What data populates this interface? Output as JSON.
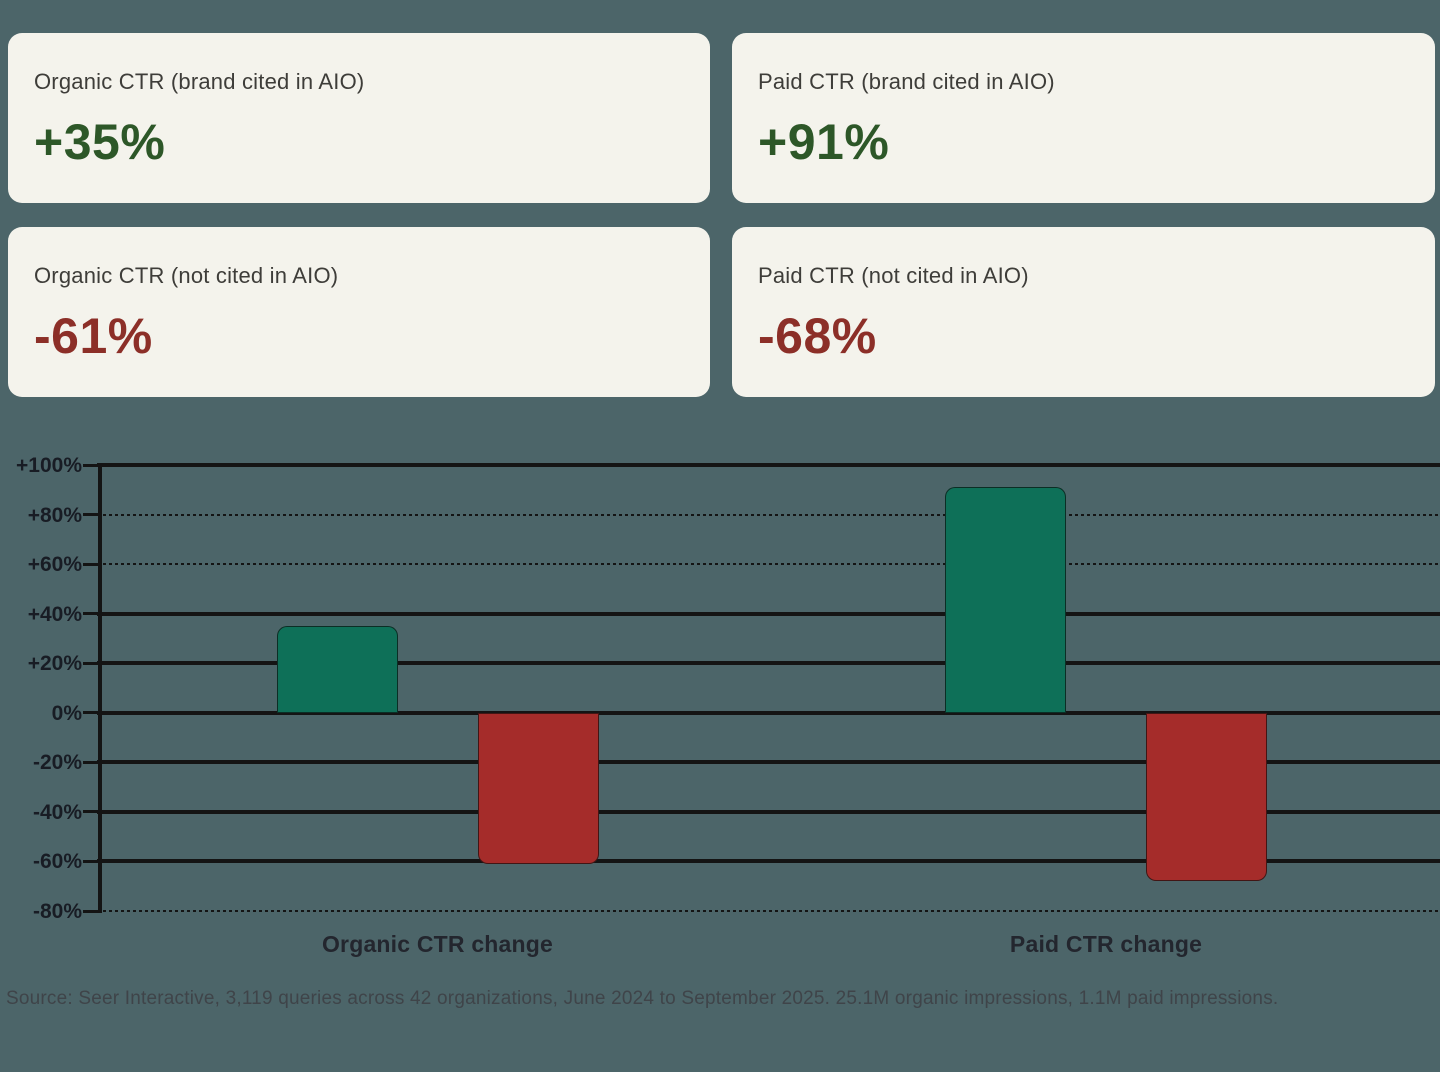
{
  "cards": [
    {
      "label": "Organic CTR (brand cited in AIO)",
      "value": "+35%",
      "sentiment": "positive"
    },
    {
      "label": "Paid CTR (brand cited in AIO)",
      "value": "+91%",
      "sentiment": "positive"
    },
    {
      "label": "Organic CTR (not cited in AIO)",
      "value": "-61%",
      "sentiment": "negative"
    },
    {
      "label": "Paid CTR (not cited in AIO)",
      "value": "-68%",
      "sentiment": "negative"
    }
  ],
  "chart_data": {
    "type": "bar",
    "categories": [
      "Organic CTR change",
      "Paid CTR change"
    ],
    "series": [
      {
        "name": "Brand cited in AIO",
        "values": [
          35,
          91
        ]
      },
      {
        "name": "Not cited in AIO",
        "values": [
          -61,
          -68
        ]
      }
    ],
    "ylim": [
      -80,
      100
    ],
    "ytick_step": 20,
    "ytick_labels": [
      "+100%",
      "+80%",
      "+60%",
      "+40%",
      "+20%",
      "0%",
      "-20%",
      "-40%",
      "-60%",
      "-80%"
    ],
    "grid": true,
    "legend": false,
    "title": "",
    "xlabel": "",
    "ylabel": ""
  },
  "source": "Source: Seer Interactive, 3,119 queries across 42 organizations, June 2024 to September 2025. 25.1M organic impressions, 1.1M paid impressions.",
  "colors": {
    "background": "#4c6569",
    "card_background": "#f4f3ec",
    "positive_text": "#2d5728",
    "negative_text": "#8c2f28",
    "bar_positive": "#0e7058",
    "bar_negative": "#a52c2a",
    "gridline": "#141414"
  }
}
